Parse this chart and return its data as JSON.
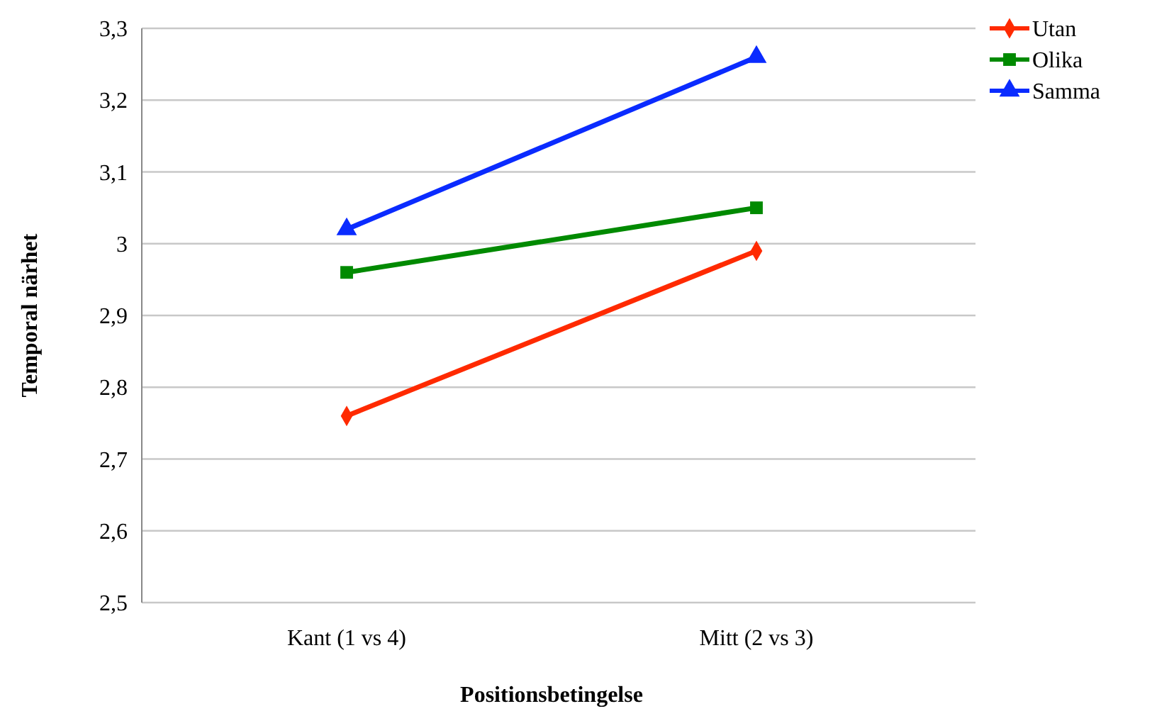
{
  "chart_data": {
    "type": "line",
    "xlabel": "Positionsbetingelse",
    "ylabel": "Temporal närhet",
    "categories": [
      "Kant (1 vs 4)",
      "Mitt (2 vs 3)"
    ],
    "series": [
      {
        "name": "Utan",
        "color": "#ff2a00",
        "values": [
          2.76,
          2.99
        ],
        "marker": "diamond"
      },
      {
        "name": "Olika",
        "color": "#008a00",
        "values": [
          2.96,
          3.05
        ],
        "marker": "square"
      },
      {
        "name": "Samma",
        "color": "#0a2bff",
        "values": [
          3.02,
          3.26
        ],
        "marker": "triangle"
      }
    ],
    "ylim": [
      2.5,
      3.3
    ],
    "yticks": [
      {
        "value": 2.5,
        "label": "2,5"
      },
      {
        "value": 2.6,
        "label": "2,6"
      },
      {
        "value": 2.7,
        "label": "2,7"
      },
      {
        "value": 2.8,
        "label": "2,8"
      },
      {
        "value": 2.9,
        "label": "2,9"
      },
      3,
      {
        "value": 3.1,
        "label": "3,1"
      },
      {
        "value": 3.2,
        "label": "3,2"
      },
      {
        "value": 3.3,
        "label": "3,3"
      }
    ],
    "grid": "y",
    "legend": "top right",
    "line_style": "solid"
  }
}
